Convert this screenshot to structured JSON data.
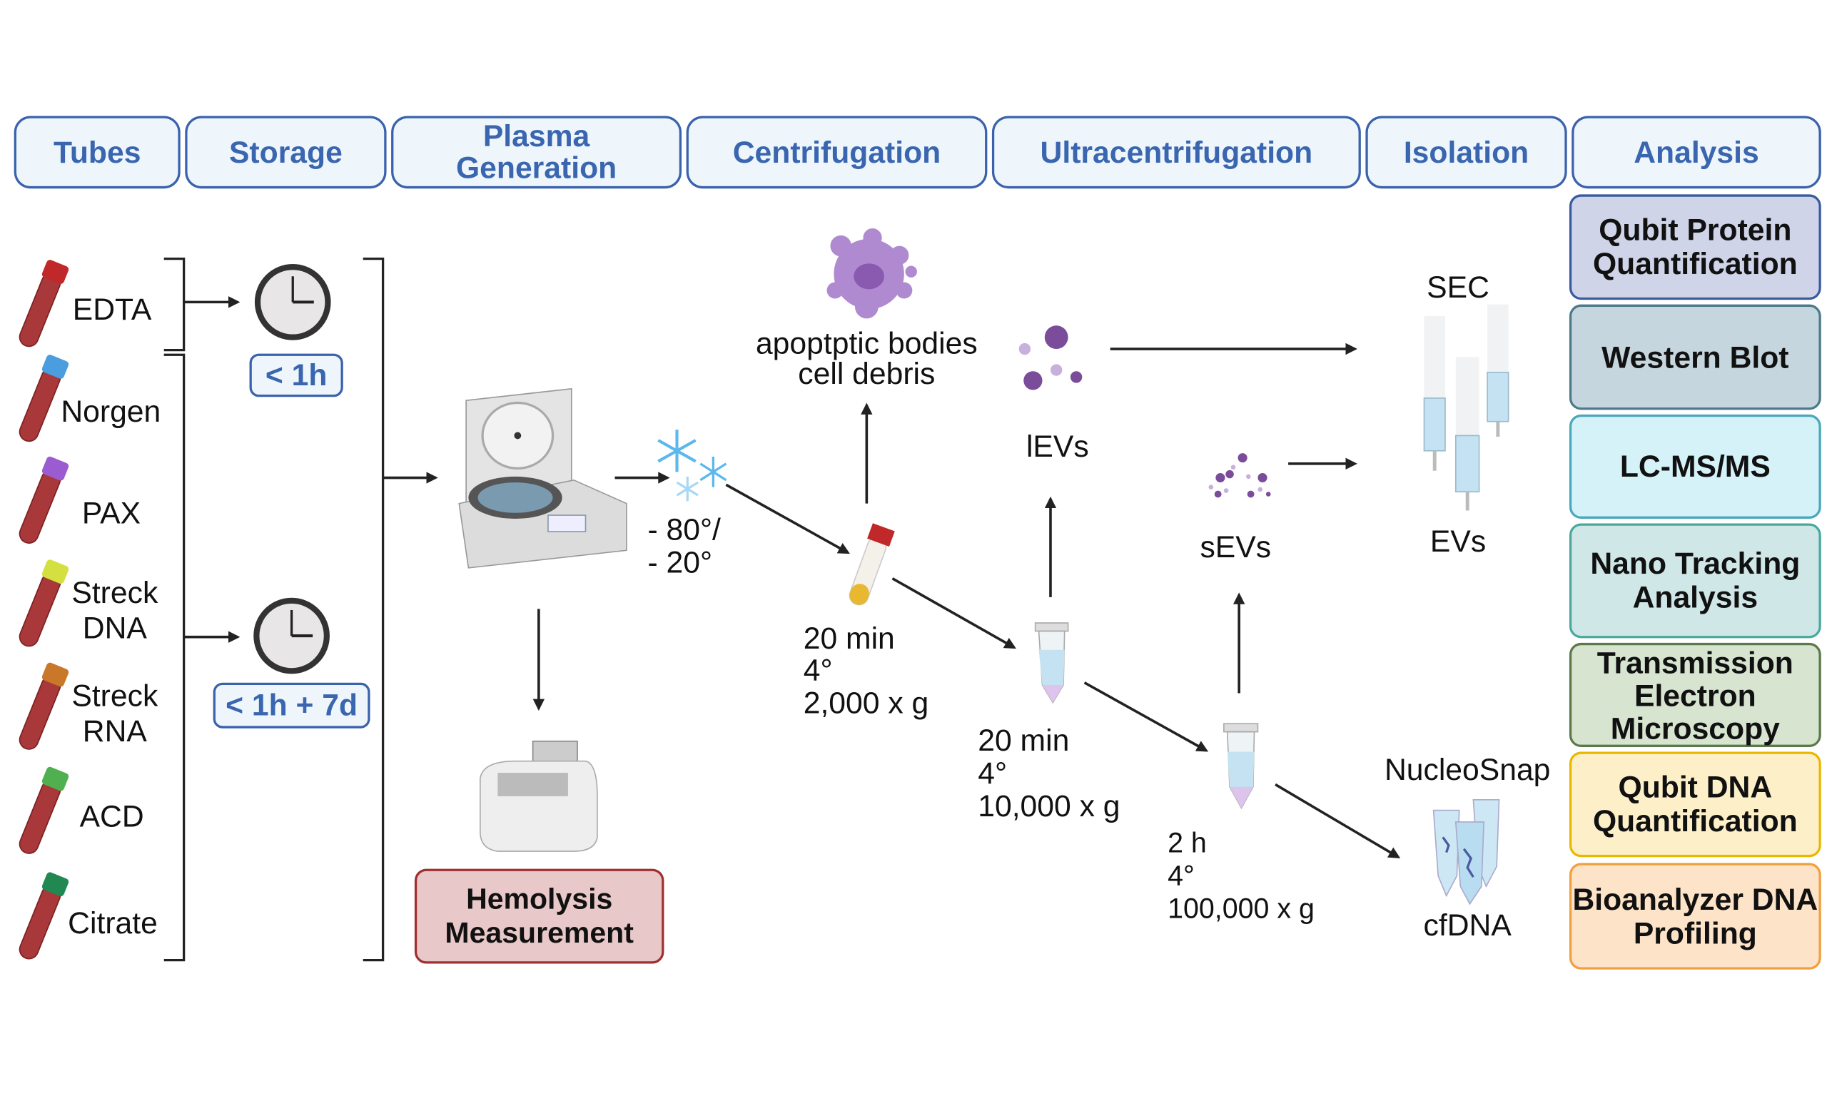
{
  "headers": [
    "Tubes",
    "Storage",
    "Plasma Generation",
    "Centrifugation",
    "Ultracentrifugation",
    "Isolation",
    "Analysis"
  ],
  "tubes": [
    {
      "label": "EDTA",
      "cap": "#c0282a"
    },
    {
      "label": "Norgen",
      "cap": "#4a9ee0"
    },
    {
      "label": "PAX",
      "cap": "#9a5cd0"
    },
    {
      "label": "Streck DNA",
      "cap": "#d4e040"
    },
    {
      "label": "Streck RNA",
      "cap": "#c87828"
    },
    {
      "label": "ACD",
      "cap": "#50b050"
    },
    {
      "label": "Citrate",
      "cap": "#208850"
    }
  ],
  "storage": {
    "short": "< 1h",
    "long": "< 1h + 7d"
  },
  "freeze": {
    "line1": "- 80°/",
    "line2": "- 20°"
  },
  "hemolysis": "Hemolysis Measurement",
  "spin1": {
    "time": "20 min",
    "temp": "4°",
    "force": "2,000 x g"
  },
  "spin2": {
    "time": "20 min",
    "temp": "4°",
    "force": "10,000 x g"
  },
  "spin3": {
    "time": "2 h",
    "temp": "4°",
    "force": "100,000 x g"
  },
  "apoptotic": {
    "line1": "apoptptic bodies",
    "line2": "cell debris"
  },
  "levs": "lEVs",
  "sevs": "sEVs",
  "sec": "SEC",
  "evs": "EVs",
  "nucleosnap": "NucleoSnap",
  "cfdna": "cfDNA",
  "analysis": [
    {
      "label": "Qubit Protein Quantification",
      "fill": "#cfd4e8",
      "border": "#3a5aa0"
    },
    {
      "label": "Western Blot",
      "fill": "#c6d6de",
      "border": "#4b7a8a"
    },
    {
      "label": "LC-MS/MS",
      "fill": "#d4f2f8",
      "border": "#4aa8bc"
    },
    {
      "label": "Nano Tracking Analysis",
      "fill": "#cfe7e6",
      "border": "#4aa8a0"
    },
    {
      "label": "Transmission Electron Microscopy",
      "fill": "#d6e4d0",
      "border": "#5a7a4a"
    },
    {
      "label": "Qubit DNA Quantification",
      "fill": "#fdf0c8",
      "border": "#e8b800"
    },
    {
      "label": "Bioanalyzer DNA Profiling",
      "fill": "#fde3c8",
      "border": "#f0a040"
    }
  ],
  "colors": {
    "header_text": "#3a66b0",
    "header_border": "#3a62ad",
    "hemolysis_fill": "#e8c8c8",
    "hemolysis_border": "#a03030"
  }
}
